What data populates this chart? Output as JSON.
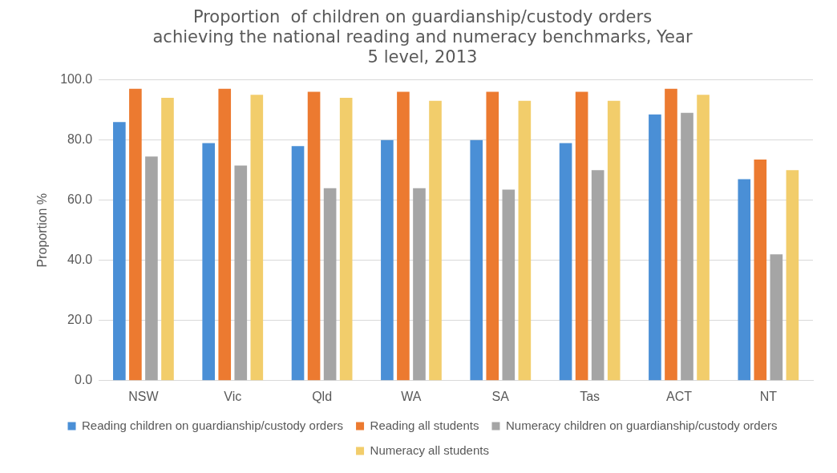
{
  "chart_data": {
    "type": "bar",
    "title": [
      "Proportion  of children on guardianship/custody orders",
      "achieving the national reading and numeracy benchmarks, Year",
      "5 level, 2013"
    ],
    "ylabel": "Proportion %",
    "categories": [
      "NSW",
      "Vic",
      "Qld",
      "WA",
      "SA",
      "Tas",
      "ACT",
      "NT"
    ],
    "series": [
      {
        "name": "Reading children on guardianship/custody orders",
        "color": "#4a8fd6",
        "values": [
          86,
          79,
          78,
          80,
          80,
          79,
          88.5,
          67
        ]
      },
      {
        "name": "Reading all students",
        "color": "#ec7a30",
        "values": [
          97,
          97,
          96,
          96,
          96,
          96,
          97,
          73.5
        ]
      },
      {
        "name": "Numeracy children on guardianship/custody orders",
        "color": "#a5a5a5",
        "values": [
          74.5,
          71.5,
          64,
          64,
          63.5,
          70,
          89,
          42
        ]
      },
      {
        "name": "Numeracy all students",
        "color": "#f2cd6b",
        "values": [
          94,
          95,
          94,
          93,
          93,
          93,
          95,
          70
        ]
      }
    ],
    "ylim": [
      0,
      100
    ],
    "yticks": [
      {
        "value": 0,
        "label": "0.0"
      },
      {
        "value": 20,
        "label": "20.0"
      },
      {
        "value": 40,
        "label": "40.0"
      },
      {
        "value": 60,
        "label": "60.0"
      },
      {
        "value": 80,
        "label": "80.0"
      },
      {
        "value": 100,
        "label": "100.0"
      }
    ],
    "grid": "y",
    "legend": "bottom"
  }
}
